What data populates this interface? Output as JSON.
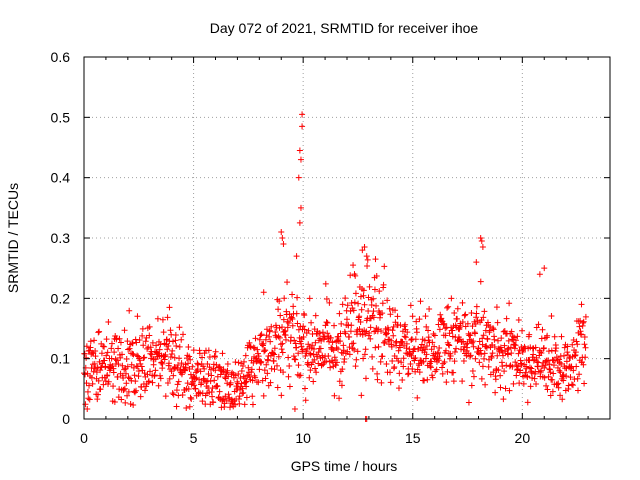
{
  "chart_data": {
    "type": "scatter",
    "title": "Day 072 of 2021, SRMTID for receiver ihoe",
    "xlabel": "GPS time / hours",
    "ylabel": "SRMTID / TECUs",
    "xlim": [
      0,
      24
    ],
    "ylim": [
      0,
      0.6
    ],
    "x_ticks": [
      0,
      5,
      10,
      15,
      20
    ],
    "x_tick_labels": [
      "0",
      "5",
      "10",
      "15",
      "20"
    ],
    "y_ticks": [
      0,
      0.1,
      0.2,
      0.3,
      0.4,
      0.5,
      0.6
    ],
    "y_tick_labels": [
      "0",
      "0.1",
      "0.2",
      "0.3",
      "0.4",
      "0.5",
      "0.6"
    ],
    "grid": true,
    "marker": "+",
    "color": "#ff0000",
    "series": [
      {
        "name": "SRMTID",
        "trend": [
          [
            0.0,
            0.075
          ],
          [
            0.5,
            0.08
          ],
          [
            1.0,
            0.085
          ],
          [
            1.5,
            0.09
          ],
          [
            2.0,
            0.08
          ],
          [
            2.5,
            0.085
          ],
          [
            3.0,
            0.095
          ],
          [
            3.5,
            0.11
          ],
          [
            4.0,
            0.1
          ],
          [
            4.5,
            0.075
          ],
          [
            5.0,
            0.065
          ],
          [
            5.5,
            0.075
          ],
          [
            6.0,
            0.07
          ],
          [
            6.5,
            0.06
          ],
          [
            7.0,
            0.05
          ],
          [
            7.5,
            0.075
          ],
          [
            8.0,
            0.1
          ],
          [
            8.5,
            0.11
          ],
          [
            9.0,
            0.13
          ],
          [
            9.5,
            0.15
          ],
          [
            10.0,
            0.13
          ],
          [
            10.5,
            0.115
          ],
          [
            11.0,
            0.12
          ],
          [
            11.5,
            0.12
          ],
          [
            12.0,
            0.14
          ],
          [
            12.5,
            0.17
          ],
          [
            13.0,
            0.16
          ],
          [
            13.5,
            0.14
          ],
          [
            14.0,
            0.13
          ],
          [
            14.5,
            0.125
          ],
          [
            15.0,
            0.12
          ],
          [
            15.5,
            0.115
          ],
          [
            16.0,
            0.12
          ],
          [
            16.5,
            0.12
          ],
          [
            17.0,
            0.13
          ],
          [
            17.5,
            0.13
          ],
          [
            18.0,
            0.135
          ],
          [
            18.5,
            0.12
          ],
          [
            19.0,
            0.105
          ],
          [
            19.5,
            0.11
          ],
          [
            20.0,
            0.1
          ],
          [
            20.5,
            0.1
          ],
          [
            21.0,
            0.095
          ],
          [
            21.5,
            0.08
          ],
          [
            22.0,
            0.09
          ],
          [
            22.5,
            0.11
          ],
          [
            22.9,
            0.12
          ]
        ],
        "spread": 0.035,
        "x_start": 0.0,
        "x_end": 22.9,
        "n_points": 1400,
        "notable_points": [
          {
            "x": 9.95,
            "y": 0.505
          },
          {
            "x": 9.95,
            "y": 0.485
          },
          {
            "x": 9.85,
            "y": 0.445
          },
          {
            "x": 9.9,
            "y": 0.43
          },
          {
            "x": 9.8,
            "y": 0.4
          },
          {
            "x": 9.9,
            "y": 0.35
          },
          {
            "x": 9.85,
            "y": 0.325
          },
          {
            "x": 9.0,
            "y": 0.31
          },
          {
            "x": 9.05,
            "y": 0.3
          },
          {
            "x": 9.1,
            "y": 0.29
          },
          {
            "x": 18.1,
            "y": 0.3
          },
          {
            "x": 18.15,
            "y": 0.295
          },
          {
            "x": 18.2,
            "y": 0.285
          },
          {
            "x": 12.7,
            "y": 0.28
          },
          {
            "x": 12.8,
            "y": 0.285
          },
          {
            "x": 13.3,
            "y": 0.265
          },
          {
            "x": 9.7,
            "y": 0.27
          },
          {
            "x": 21.0,
            "y": 0.25
          },
          {
            "x": 20.8,
            "y": 0.24
          },
          {
            "x": 12.9,
            "y": 0.27
          },
          {
            "x": 8.2,
            "y": 0.21
          },
          {
            "x": 3.9,
            "y": 0.185
          },
          {
            "x": 22.7,
            "y": 0.19
          },
          {
            "x": 10.3,
            "y": 0.2
          },
          {
            "x": 17.9,
            "y": 0.26
          },
          {
            "x": 12.85,
            "y": 0.0
          },
          {
            "x": 12.9,
            "y": 0.0
          }
        ]
      }
    ]
  }
}
